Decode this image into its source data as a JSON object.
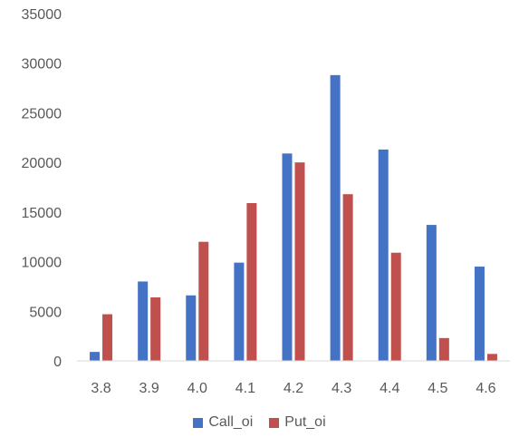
{
  "chart_data": {
    "type": "bar",
    "categories": [
      "3.8",
      "3.9",
      "4.0",
      "4.1",
      "4.2",
      "4.3",
      "4.4",
      "4.5",
      "4.6"
    ],
    "series": [
      {
        "name": "Call_oi",
        "color": "#4472C4",
        "values": [
          900,
          8000,
          6600,
          9900,
          20900,
          28800,
          21300,
          13700,
          9500
        ]
      },
      {
        "name": "Put_oi",
        "color": "#C0504D",
        "values": [
          4700,
          6400,
          12000,
          15900,
          20000,
          16800,
          10900,
          2300,
          700
        ]
      }
    ],
    "ylim": [
      0,
      35000
    ],
    "yticks": [
      "0",
      "5000",
      "10000",
      "15000",
      "20000",
      "25000",
      "30000",
      "35000"
    ],
    "grid": false,
    "legend_position": "bottom"
  }
}
